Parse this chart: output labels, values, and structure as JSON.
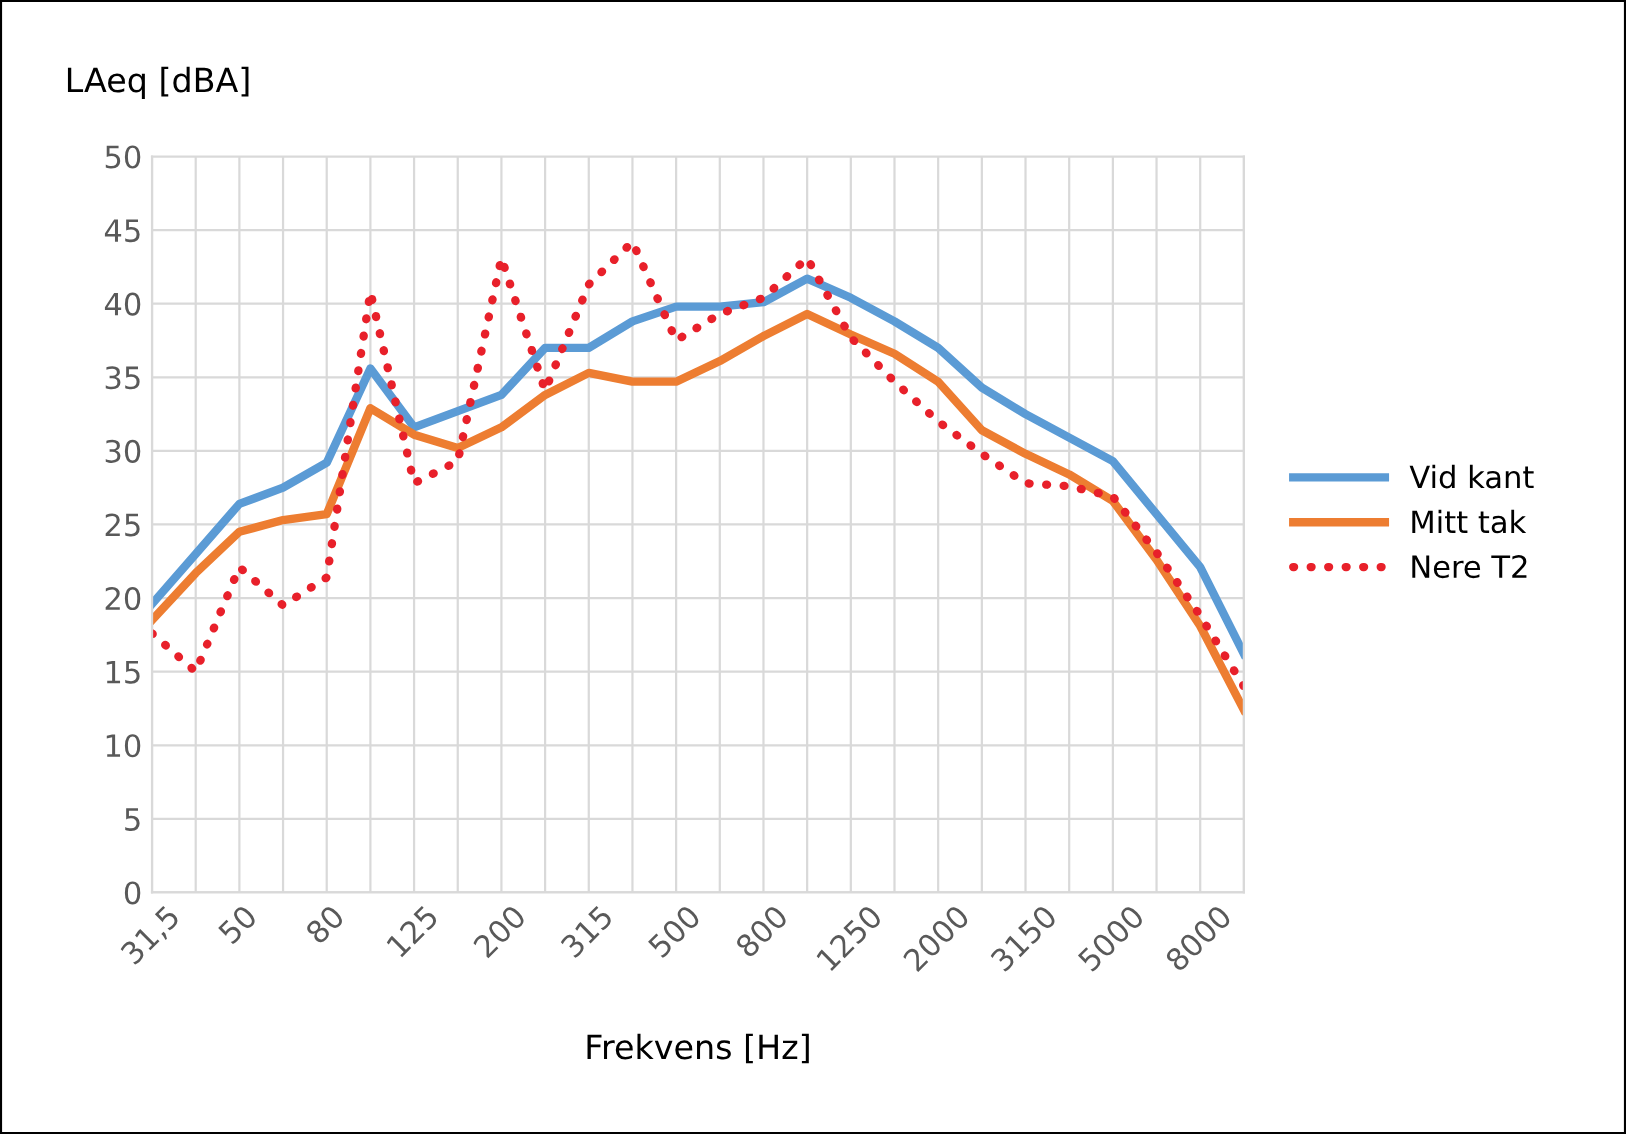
{
  "chart_data": {
    "type": "line",
    "categories": [
      "31,5",
      null,
      "50",
      null,
      "80",
      null,
      "125",
      null,
      "200",
      null,
      "315",
      null,
      "500",
      null,
      "800",
      null,
      "1250",
      null,
      "2000",
      null,
      "3150",
      null,
      "5000",
      null,
      "8000",
      null
    ],
    "xlabel": "Frekvens [Hz]",
    "ylabel": "LAeq [dBA]",
    "ylim": [
      0,
      50
    ],
    "yticks": [
      0,
      5,
      10,
      15,
      20,
      25,
      30,
      35,
      40,
      45,
      50
    ],
    "grid": true,
    "legend": "right",
    "series": [
      {
        "name": "Vid kant",
        "color": "#5b9bd5",
        "line_style": "solid",
        "values": [
          19.6,
          23,
          26.4,
          27.5,
          29.2,
          35.6,
          31.6,
          32.7,
          33.8,
          37,
          37,
          38.8,
          39.8,
          39.8,
          40.1,
          41.7,
          40.4,
          38.8,
          37,
          34.3,
          32.5,
          30.9,
          29.3,
          25.7,
          22.1,
          16.2
        ]
      },
      {
        "name": "Mitt tak",
        "color": "#ed7d31",
        "line_style": "solid",
        "values": [
          18.5,
          21.7,
          24.5,
          25.3,
          25.7,
          32.9,
          31.1,
          30.2,
          31.6,
          33.8,
          35.3,
          34.7,
          34.7,
          36.1,
          37.8,
          39.3,
          37.9,
          36.6,
          34.7,
          31.4,
          29.8,
          28.4,
          26.6,
          22.6,
          18.1,
          12.4
        ]
      },
      {
        "name": "Nere T2",
        "color": "#e8202a",
        "line_style": "dotted",
        "values": [
          17.6,
          15,
          22.1,
          19.5,
          21.4,
          40.8,
          27.8,
          29.3,
          43.1,
          34.1,
          41.3,
          44.2,
          37.5,
          39.3,
          40.4,
          43.1,
          37.7,
          34.7,
          32,
          29.8,
          27.8,
          27.6,
          26.9,
          23.1,
          18.8,
          14
        ]
      }
    ]
  }
}
